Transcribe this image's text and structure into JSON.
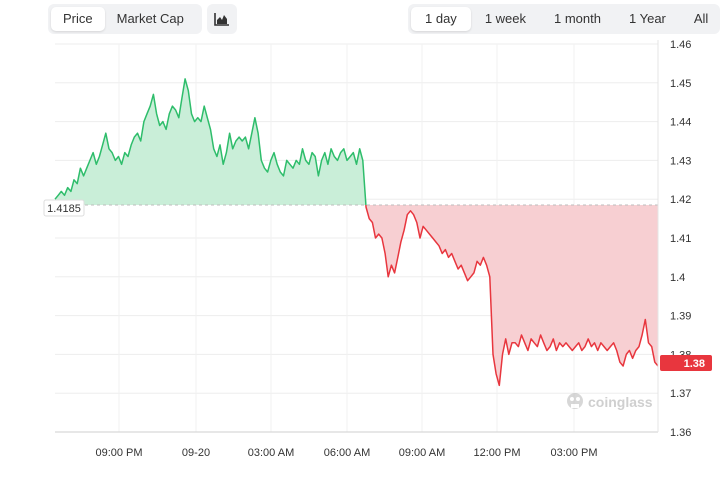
{
  "metric_tabs": [
    {
      "label": "Price",
      "active": true
    },
    {
      "label": "Market Cap",
      "active": false
    }
  ],
  "chart_type_icon": "area-chart-icon",
  "range_tabs": [
    {
      "label": "1 day",
      "active": true
    },
    {
      "label": "1 week",
      "active": false
    },
    {
      "label": "1 month",
      "active": false
    },
    {
      "label": "1 Year",
      "active": false
    },
    {
      "label": "All",
      "active": false
    }
  ],
  "watermark": "coinglass",
  "colors": {
    "up": "#2ebd6b",
    "up_fill": "#c9eed8",
    "down": "#e8363e",
    "down_fill": "#f7cfd2",
    "baseline": "#bdbdbd"
  },
  "chart_data": {
    "type": "area",
    "baseline_value": 1.4185,
    "baseline_label": "1.4185",
    "last_value_label": "1.38",
    "ylim": [
      1.36,
      1.46
    ],
    "y_ticks": [
      "1.46",
      "1.45",
      "1.44",
      "1.43",
      "1.42",
      "1.41",
      "1.4",
      "1.39",
      "1.38",
      "1.37",
      "1.36"
    ],
    "x_ticks": [
      "09:00 PM",
      "09-20",
      "03:00 AM",
      "06:00 AM",
      "09:00 AM",
      "12:00 PM",
      "03:00 PM"
    ],
    "grid": true,
    "points": [
      [
        0,
        1.42
      ],
      [
        1,
        1.421
      ],
      [
        2,
        1.422
      ],
      [
        3,
        1.421
      ],
      [
        4,
        1.423
      ],
      [
        5,
        1.422
      ],
      [
        6,
        1.425
      ],
      [
        7,
        1.424
      ],
      [
        8,
        1.428
      ],
      [
        9,
        1.426
      ],
      [
        10,
        1.428
      ],
      [
        11,
        1.43
      ],
      [
        12,
        1.432
      ],
      [
        13,
        1.429
      ],
      [
        14,
        1.431
      ],
      [
        15,
        1.434
      ],
      [
        16,
        1.437
      ],
      [
        17,
        1.433
      ],
      [
        18,
        1.432
      ],
      [
        19,
        1.43
      ],
      [
        20,
        1.431
      ],
      [
        21,
        1.429
      ],
      [
        22,
        1.432
      ],
      [
        23,
        1.431
      ],
      [
        24,
        1.434
      ],
      [
        25,
        1.436
      ],
      [
        26,
        1.437
      ],
      [
        27,
        1.435
      ],
      [
        28,
        1.44
      ],
      [
        29,
        1.442
      ],
      [
        30,
        1.444
      ],
      [
        31,
        1.447
      ],
      [
        32,
        1.442
      ],
      [
        33,
        1.439
      ],
      [
        34,
        1.44
      ],
      [
        35,
        1.438
      ],
      [
        36,
        1.442
      ],
      [
        37,
        1.444
      ],
      [
        38,
        1.443
      ],
      [
        39,
        1.441
      ],
      [
        40,
        1.446
      ],
      [
        41,
        1.451
      ],
      [
        42,
        1.448
      ],
      [
        43,
        1.442
      ],
      [
        44,
        1.44
      ],
      [
        45,
        1.441
      ],
      [
        46,
        1.44
      ],
      [
        47,
        1.444
      ],
      [
        48,
        1.441
      ],
      [
        49,
        1.438
      ],
      [
        50,
        1.433
      ],
      [
        51,
        1.431
      ],
      [
        52,
        1.434
      ],
      [
        53,
        1.429
      ],
      [
        54,
        1.432
      ],
      [
        55,
        1.437
      ],
      [
        56,
        1.433
      ],
      [
        57,
        1.435
      ],
      [
        58,
        1.436
      ],
      [
        59,
        1.435
      ],
      [
        60,
        1.436
      ],
      [
        61,
        1.433
      ],
      [
        62,
        1.437
      ],
      [
        63,
        1.441
      ],
      [
        64,
        1.437
      ],
      [
        65,
        1.43
      ],
      [
        66,
        1.428
      ],
      [
        67,
        1.427
      ],
      [
        68,
        1.43
      ],
      [
        69,
        1.432
      ],
      [
        70,
        1.429
      ],
      [
        71,
        1.427
      ],
      [
        72,
        1.426
      ],
      [
        73,
        1.43
      ],
      [
        74,
        1.429
      ],
      [
        75,
        1.428
      ],
      [
        76,
        1.43
      ],
      [
        77,
        1.429
      ],
      [
        78,
        1.433
      ],
      [
        79,
        1.43
      ],
      [
        80,
        1.429
      ],
      [
        81,
        1.432
      ],
      [
        82,
        1.431
      ],
      [
        83,
        1.426
      ],
      [
        84,
        1.43
      ],
      [
        85,
        1.432
      ],
      [
        86,
        1.429
      ],
      [
        87,
        1.433
      ],
      [
        88,
        1.431
      ],
      [
        89,
        1.43
      ],
      [
        90,
        1.432
      ],
      [
        91,
        1.433
      ],
      [
        92,
        1.43
      ],
      [
        93,
        1.431
      ],
      [
        94,
        1.432
      ],
      [
        95,
        1.429
      ],
      [
        96,
        1.433
      ],
      [
        97,
        1.43
      ],
      [
        98,
        1.418
      ],
      [
        99,
        1.415
      ],
      [
        100,
        1.414
      ],
      [
        101,
        1.41
      ],
      [
        102,
        1.411
      ],
      [
        103,
        1.41
      ],
      [
        104,
        1.406
      ],
      [
        105,
        1.4
      ],
      [
        106,
        1.403
      ],
      [
        107,
        1.401
      ],
      [
        108,
        1.405
      ],
      [
        109,
        1.409
      ],
      [
        110,
        1.412
      ],
      [
        111,
        1.416
      ],
      [
        112,
        1.417
      ],
      [
        113,
        1.416
      ],
      [
        114,
        1.414
      ],
      [
        115,
        1.41
      ],
      [
        116,
        1.413
      ],
      [
        117,
        1.412
      ],
      [
        118,
        1.411
      ],
      [
        119,
        1.41
      ],
      [
        120,
        1.409
      ],
      [
        121,
        1.408
      ],
      [
        122,
        1.406
      ],
      [
        123,
        1.407
      ],
      [
        124,
        1.405
      ],
      [
        125,
        1.406
      ],
      [
        126,
        1.404
      ],
      [
        127,
        1.402
      ],
      [
        128,
        1.403
      ],
      [
        129,
        1.401
      ],
      [
        130,
        1.399
      ],
      [
        131,
        1.4
      ],
      [
        132,
        1.401
      ],
      [
        133,
        1.404
      ],
      [
        134,
        1.403
      ],
      [
        135,
        1.405
      ],
      [
        136,
        1.403
      ],
      [
        137,
        1.4
      ],
      [
        138,
        1.38
      ],
      [
        139,
        1.375
      ],
      [
        140,
        1.372
      ],
      [
        141,
        1.38
      ],
      [
        142,
        1.384
      ],
      [
        143,
        1.38
      ],
      [
        144,
        1.383
      ],
      [
        145,
        1.383
      ],
      [
        146,
        1.382
      ],
      [
        147,
        1.385
      ],
      [
        148,
        1.383
      ],
      [
        149,
        1.381
      ],
      [
        150,
        1.384
      ],
      [
        151,
        1.383
      ],
      [
        152,
        1.382
      ],
      [
        153,
        1.385
      ],
      [
        154,
        1.383
      ],
      [
        155,
        1.381
      ],
      [
        156,
        1.382
      ],
      [
        157,
        1.384
      ],
      [
        158,
        1.381
      ],
      [
        159,
        1.383
      ],
      [
        160,
        1.382
      ],
      [
        161,
        1.383
      ],
      [
        162,
        1.382
      ],
      [
        163,
        1.381
      ],
      [
        164,
        1.382
      ],
      [
        165,
        1.383
      ],
      [
        166,
        1.381
      ],
      [
        167,
        1.382
      ],
      [
        168,
        1.384
      ],
      [
        169,
        1.382
      ],
      [
        170,
        1.383
      ],
      [
        171,
        1.381
      ],
      [
        172,
        1.383
      ],
      [
        173,
        1.382
      ],
      [
        174,
        1.381
      ],
      [
        175,
        1.382
      ],
      [
        176,
        1.383
      ],
      [
        177,
        1.381
      ],
      [
        178,
        1.378
      ],
      [
        179,
        1.377
      ],
      [
        180,
        1.38
      ],
      [
        181,
        1.381
      ],
      [
        182,
        1.379
      ],
      [
        183,
        1.381
      ],
      [
        184,
        1.382
      ],
      [
        185,
        1.385
      ],
      [
        186,
        1.389
      ],
      [
        187,
        1.383
      ],
      [
        188,
        1.382
      ],
      [
        189,
        1.378
      ],
      [
        190,
        1.377
      ]
    ]
  }
}
